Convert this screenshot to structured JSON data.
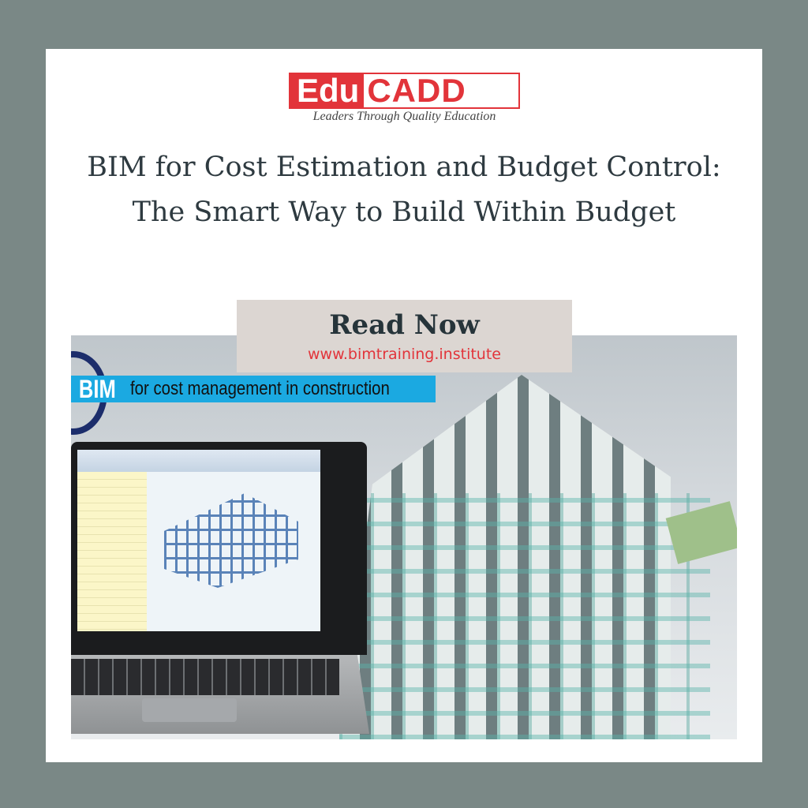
{
  "brand": {
    "logo_part1": "Edu",
    "logo_part2": "CADD",
    "tagline": "Leaders Through Quality Education",
    "color": "#e2343a"
  },
  "title": "BIM for Cost Estimation and Budget Control: The Smart Way to Build Within Budget",
  "cta": {
    "label": "Read Now",
    "url": "www.bimtraining.institute"
  },
  "hero": {
    "banner_bim": "BIM",
    "banner_text": "for cost management in construction",
    "banner_color": "#1ba9e1"
  },
  "colors": {
    "frame": "#7a8886",
    "cta_bg": "#dcd6d2",
    "title": "#2e3a40"
  }
}
